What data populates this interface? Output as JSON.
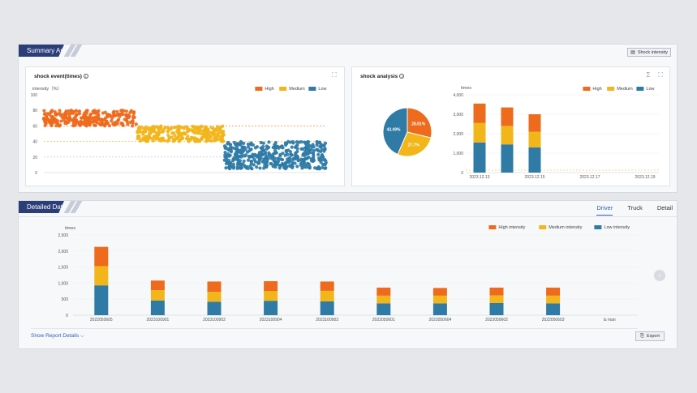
{
  "summary": {
    "tab_label": "Summary Ar",
    "shock_intensity_button": "Shock intensity"
  },
  "shock_event": {
    "title": "shock event(times)",
    "y_axis_label": "intensity（%）",
    "legend": [
      "High",
      "Medium",
      "Low"
    ]
  },
  "shock_analysis": {
    "title": "shock analysis",
    "y_axis_label": "times",
    "legend": [
      "High",
      "Medium",
      "Low"
    ],
    "pie_labels": [
      "43.49%",
      "28.81%",
      "27.7%"
    ]
  },
  "detailed": {
    "tab_label": "Detailed Data",
    "tabs": [
      "Driver",
      "Truck",
      "Detail"
    ],
    "y_axis_label": "times",
    "legend": [
      "High intensity",
      "Medium intensity",
      "Low intensity"
    ],
    "show_details": "Show Report Details",
    "export_button": "Export"
  },
  "colors": {
    "high": "#ee6a1c",
    "medium": "#f2b51a",
    "low": "#2f7ba6",
    "accent": "#2c3e78",
    "link": "#2c62b4"
  },
  "chart_data": [
    {
      "type": "scatter",
      "title": "shock event(times)",
      "ylabel": "intensity（%）",
      "ylim": [
        0,
        100
      ],
      "y_ticks": [
        0,
        20,
        40,
        60,
        80,
        100
      ],
      "reference_lines": [
        60,
        40,
        20
      ],
      "series": [
        {
          "name": "High",
          "y_range": [
            60,
            80
          ],
          "x_range": [
            0,
            0.33
          ]
        },
        {
          "name": "Medium",
          "y_range": [
            40,
            60
          ],
          "x_range": [
            0.33,
            0.64
          ]
        },
        {
          "name": "Low",
          "y_range": [
            5,
            40
          ],
          "x_range": [
            0.64,
            1.0
          ]
        }
      ]
    },
    {
      "type": "pie",
      "slices": [
        {
          "name": "High",
          "value": 28.81
        },
        {
          "name": "Medium",
          "value": 27.7
        },
        {
          "name": "Low",
          "value": 43.49
        }
      ]
    },
    {
      "type": "bar",
      "ylabel": "times",
      "ylim": [
        0,
        4000
      ],
      "y_ticks": [
        "0",
        "1,000",
        "2,000",
        "3,000",
        "4,000"
      ],
      "categories": [
        "2023.12.13",
        "",
        "2023.12.15",
        "",
        "2023.12.17",
        "",
        "2023.12.19"
      ],
      "shown_categories": [
        "2023.12.13",
        "2023.12.15",
        "2023.12.17",
        "2023.12.19"
      ],
      "series": [
        {
          "name": "Low",
          "values": [
            1550,
            1450,
            1300,
            0,
            0,
            0,
            0
          ]
        },
        {
          "name": "Medium",
          "values": [
            1000,
            950,
            800,
            0,
            0,
            0,
            0
          ]
        },
        {
          "name": "High",
          "values": [
            1000,
            950,
            900,
            0,
            0,
            0,
            0
          ]
        }
      ]
    },
    {
      "type": "bar",
      "ylabel": "times",
      "ylim": [
        0,
        2500
      ],
      "y_ticks": [
        "0",
        "500",
        "1,000",
        "1,500",
        "2,000",
        "2,500"
      ],
      "categories": [
        "2022050605",
        "2023100901",
        "2023100902",
        "2023100904",
        "2023100903",
        "2022050601",
        "2022050604",
        "2022050602",
        "2022050603",
        "lu man"
      ],
      "series": [
        {
          "name": "Low intensity",
          "values": [
            930,
            460,
            420,
            450,
            430,
            370,
            370,
            380,
            370,
            0
          ]
        },
        {
          "name": "Medium intensity",
          "values": [
            600,
            320,
            310,
            300,
            330,
            240,
            240,
            240,
            240,
            0
          ]
        },
        {
          "name": "High intensity",
          "values": [
            600,
            300,
            320,
            310,
            290,
            250,
            240,
            240,
            250,
            0
          ]
        }
      ]
    }
  ]
}
